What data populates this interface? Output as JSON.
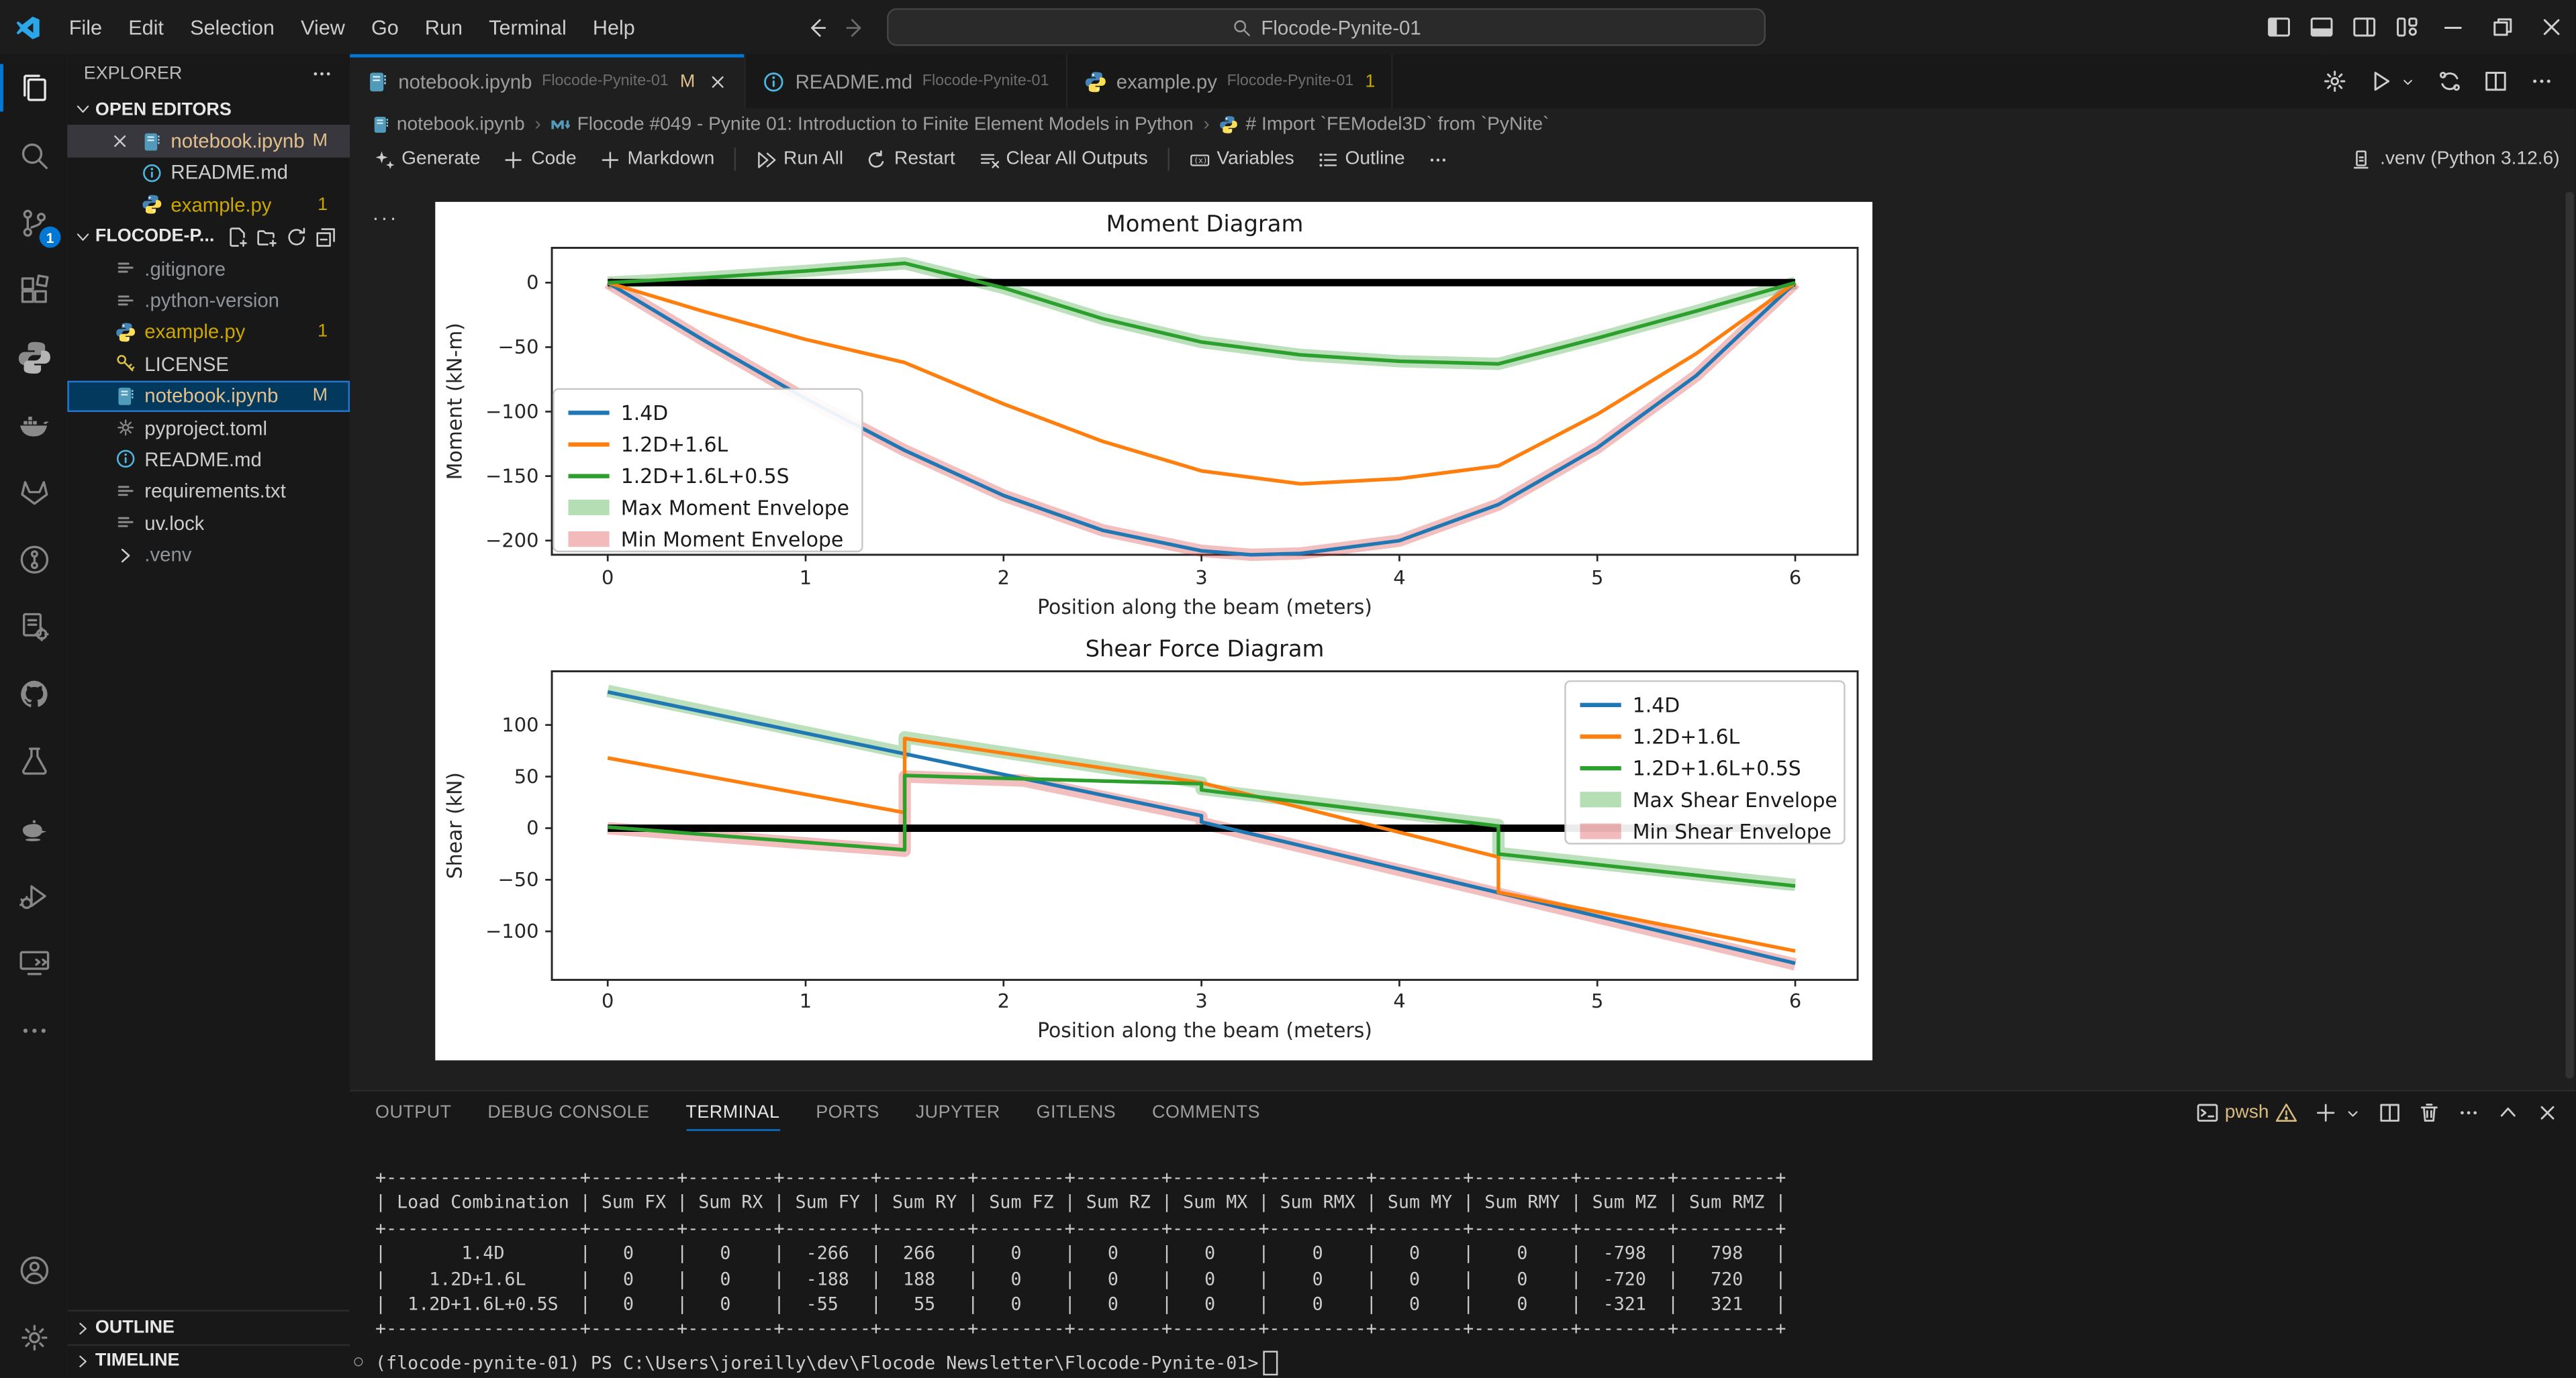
{
  "window": {
    "menu": [
      "File",
      "Edit",
      "Selection",
      "View",
      "Go",
      "Run",
      "Terminal",
      "Help"
    ],
    "search_value": "Flocode-Pynite-01",
    "layout_icons": [
      "toggle-sidebar",
      "toggle-panel",
      "toggle-secondary-sidebar",
      "customize-layout"
    ],
    "controls": [
      "minimize",
      "restore",
      "close"
    ]
  },
  "activity_bar": {
    "top": [
      {
        "name": "explorer",
        "active": true
      },
      {
        "name": "search"
      },
      {
        "name": "source-control",
        "badge": "1"
      },
      {
        "name": "extensions"
      },
      {
        "name": "python"
      },
      {
        "name": "docker"
      },
      {
        "name": "gitlab"
      },
      {
        "name": "gitlens"
      },
      {
        "name": "notebook-kernels"
      },
      {
        "name": "github"
      },
      {
        "name": "testing"
      },
      {
        "name": "genie-lamp"
      },
      {
        "name": "run-and-debug"
      },
      {
        "name": "remote-explorer"
      },
      {
        "name": "more-views"
      }
    ],
    "bottom": [
      {
        "name": "accounts"
      },
      {
        "name": "manage-settings"
      }
    ]
  },
  "sidebar": {
    "title": "EXPLORER",
    "open_editors": {
      "label": "OPEN EDITORS",
      "items": [
        {
          "icon": "notebook",
          "label": "notebook.ipynb",
          "badge": "M",
          "badge_style": "mod",
          "label_style": "mod",
          "selected": true,
          "close": true
        },
        {
          "icon": "info",
          "label": "README.md"
        },
        {
          "icon": "python",
          "label": "example.py",
          "badge": "1",
          "badge_style": "warn",
          "label_style": "warn"
        }
      ]
    },
    "workspace": {
      "label": "FLOCODE-P...",
      "actions": [
        "new-file",
        "new-folder",
        "refresh",
        "collapse-all"
      ],
      "items": [
        {
          "icon": "file",
          "label": ".gitignore",
          "label_style": "dim"
        },
        {
          "icon": "file",
          "label": ".python-version",
          "label_style": "dim"
        },
        {
          "icon": "python",
          "label": "example.py",
          "badge": "1",
          "badge_style": "warn",
          "label_style": "warn"
        },
        {
          "icon": "key",
          "label": "LICENSE"
        },
        {
          "icon": "notebook",
          "label": "notebook.ipynb",
          "badge": "M",
          "badge_style": "mod",
          "label_style": "mod",
          "selected": true
        },
        {
          "icon": "gear-file",
          "label": "pyproject.toml"
        },
        {
          "icon": "info",
          "label": "README.md"
        },
        {
          "icon": "file",
          "label": "requirements.txt"
        },
        {
          "icon": "file",
          "label": "uv.lock"
        },
        {
          "icon": "chevron-right",
          "label": ".venv",
          "label_style": "dim"
        }
      ]
    },
    "bottom_sections": [
      "OUTLINE",
      "TIMELINE"
    ]
  },
  "editor": {
    "tabs": [
      {
        "icon": "notebook",
        "label": "notebook.ipynb",
        "description": "Flocode-Pynite-01",
        "badge": "M",
        "badge_style": "mod",
        "label_style": "mod",
        "active": true,
        "close": true
      },
      {
        "icon": "info",
        "label": "README.md",
        "description": "Flocode-Pynite-01"
      },
      {
        "icon": "python",
        "label": "example.py",
        "description": "Flocode-Pynite-01",
        "badge": "1",
        "badge_style": "warn",
        "label_style": "warn"
      }
    ],
    "actions": [
      "gear",
      "play",
      "caret-down-sm",
      "sync",
      "split",
      "more-h"
    ],
    "breadcrumb": [
      {
        "icon": "notebook",
        "label": "notebook.ipynb"
      },
      {
        "icon": "markdown",
        "label": "Flocode #049 - Pynite 01: Introduction to Finite Element Models in Python"
      },
      {
        "icon": "python",
        "label": "# Import `FEModel3D` from `PyNite`"
      }
    ],
    "toolbar": [
      {
        "icon": "sparkle",
        "label": "Generate"
      },
      {
        "icon": "plus",
        "label": "Code"
      },
      {
        "icon": "plus",
        "label": "Markdown"
      },
      {
        "divider": true
      },
      {
        "icon": "run-all",
        "label": "Run All"
      },
      {
        "icon": "restart",
        "label": "Restart"
      },
      {
        "icon": "clear",
        "label": "Clear All Outputs"
      },
      {
        "divider": true
      },
      {
        "icon": "variables",
        "label": "Variables"
      },
      {
        "icon": "outline",
        "label": "Outline"
      },
      {
        "icon": "more-h",
        "label": ""
      }
    ],
    "kernel": ".venv (Python 3.12.6)",
    "cell_more": "···"
  },
  "panel": {
    "tabs": [
      "OUTPUT",
      "DEBUG CONSOLE",
      "TERMINAL",
      "PORTS",
      "JUPYTER",
      "GITLENS",
      "COMMENTS"
    ],
    "active_tab": "TERMINAL",
    "shell_label": "pwsh",
    "actions": [
      "plus",
      "caret-down-sm",
      "split-panel",
      "trash",
      "more-h",
      "chevron-up",
      "close-x"
    ],
    "terminal_table": [
      "+------------------+--------+--------+--------+--------+--------+--------+--------+---------+--------+---------+--------+---------+",
      "| Load Combination | Sum FX | Sum RX | Sum FY | Sum RY | Sum FZ | Sum RZ | Sum MX | Sum RMX | Sum MY | Sum RMY | Sum MZ | Sum RMZ |",
      "+------------------+--------+--------+--------+--------+--------+--------+--------+---------+--------+---------+--------+---------+",
      "|       1.4D       |   0    |   0    |  -266  |  266   |   0    |   0    |   0    |    0    |   0    |    0    |  -798  |   798   |",
      "|    1.2D+1.6L     |   0    |   0    |  -188  |  188   |   0    |   0    |   0    |    0    |   0    |    0    |  -720  |   720   |",
      "|  1.2D+1.6L+0.5S  |   0    |   0    |  -55   |   55   |   0    |   0    |   0    |    0    |   0    |    0    |  -321  |   321   |",
      "+------------------+--------+--------+--------+--------+--------+--------+--------+---------+--------+---------+--------+---------+"
    ],
    "prompt": "(flocode-pynite-01) PS C:\\Users\\joreilly\\dev\\Flocode Newsletter\\Flocode-Pynite-01>"
  },
  "chart_data": [
    {
      "type": "line",
      "title": "Moment Diagram",
      "xlabel": "Position along the beam (meters)",
      "ylabel": "Moment (kN-m)",
      "xlim": [
        0,
        6
      ],
      "ylim": [
        -211,
        27
      ],
      "xticks": [
        0,
        1,
        2,
        3,
        4,
        5,
        6
      ],
      "yticks": [
        0,
        -50,
        -100,
        -150,
        -200
      ],
      "grid": false,
      "legend_position": "lower-left",
      "legend": [
        {
          "label": "1.4D",
          "color": "#1f77b4",
          "type": "line"
        },
        {
          "label": "1.2D+1.6L",
          "color": "#ff7f0e",
          "type": "line"
        },
        {
          "label": "1.2D+1.6L+0.5S",
          "color": "#2ca02c",
          "type": "line"
        },
        {
          "label": "Max Moment Envelope",
          "color": "#2ca02c",
          "type": "band",
          "opacity": 0.35
        },
        {
          "label": "Min Moment Envelope",
          "color": "#d62728",
          "type": "band",
          "opacity": 0.32
        }
      ],
      "series": [
        {
          "name": "Max Moment Envelope",
          "kind": "band",
          "color": "#2ca02c",
          "width": 7.5,
          "opacity": 0.32,
          "points": [
            [
              0,
              0
            ],
            [
              0.5,
              4
            ],
            [
              1,
              9
            ],
            [
              1.5,
              15
            ],
            [
              2,
              -4
            ],
            [
              2.5,
              -28
            ],
            [
              3,
              -46
            ],
            [
              3.5,
              -56
            ],
            [
              4,
              -61
            ],
            [
              4.5,
              -63
            ],
            [
              5,
              -43
            ],
            [
              5.5,
              -22
            ],
            [
              6,
              0
            ]
          ]
        },
        {
          "name": "Min Moment Envelope",
          "kind": "band",
          "color": "#d62728",
          "width": 7.5,
          "opacity": 0.3,
          "points": [
            [
              0,
              0
            ],
            [
              0.5,
              -46
            ],
            [
              1,
              -90
            ],
            [
              1.5,
              -130
            ],
            [
              2,
              -165
            ],
            [
              2.5,
              -192
            ],
            [
              3,
              -208
            ],
            [
              3.25,
              -211
            ],
            [
              3.5,
              -210
            ],
            [
              4,
              -200
            ],
            [
              4.5,
              -172
            ],
            [
              5,
              -128
            ],
            [
              5.5,
              -72
            ],
            [
              6,
              0
            ]
          ]
        },
        {
          "name": "Beam",
          "kind": "line",
          "color": "#000000",
          "width": 4.5,
          "points": [
            [
              0,
              0
            ],
            [
              6,
              0
            ]
          ]
        },
        {
          "name": "1.4D",
          "kind": "line",
          "color": "#1f77b4",
          "width": 2.2,
          "points": [
            [
              0,
              0
            ],
            [
              0.5,
              -46
            ],
            [
              1,
              -90
            ],
            [
              1.5,
              -130
            ],
            [
              2,
              -165
            ],
            [
              2.5,
              -192
            ],
            [
              3,
              -208
            ],
            [
              3.25,
              -211
            ],
            [
              3.5,
              -210
            ],
            [
              4,
              -200
            ],
            [
              4.5,
              -172
            ],
            [
              5,
              -128
            ],
            [
              5.5,
              -72
            ],
            [
              6,
              0
            ]
          ]
        },
        {
          "name": "1.2D+1.6L",
          "kind": "line",
          "color": "#ff7f0e",
          "width": 2.2,
          "points": [
            [
              0,
              0
            ],
            [
              0.5,
              -23
            ],
            [
              1,
              -44
            ],
            [
              1.5,
              -62
            ],
            [
              2,
              -94
            ],
            [
              2.5,
              -123
            ],
            [
              3,
              -146
            ],
            [
              3.5,
              -156
            ],
            [
              4,
              -152
            ],
            [
              4.5,
              -142
            ],
            [
              5,
              -102
            ],
            [
              5.5,
              -55
            ],
            [
              6,
              0
            ]
          ]
        },
        {
          "name": "1.2D+1.6L+0.5S",
          "kind": "line",
          "color": "#2ca02c",
          "width": 2.2,
          "points": [
            [
              0,
              0
            ],
            [
              0.5,
              4
            ],
            [
              1,
              9
            ],
            [
              1.5,
              15
            ],
            [
              2,
              -4
            ],
            [
              2.5,
              -28
            ],
            [
              3,
              -46
            ],
            [
              3.5,
              -56
            ],
            [
              4,
              -61
            ],
            [
              4.5,
              -63
            ],
            [
              5,
              -43
            ],
            [
              5.5,
              -22
            ],
            [
              6,
              0
            ]
          ]
        }
      ]
    },
    {
      "type": "line",
      "title": "Shear Force Diagram",
      "xlabel": "Position along the beam (meters)",
      "ylabel": "Shear (kN)",
      "xlim": [
        0,
        6
      ],
      "ylim": [
        -147,
        152
      ],
      "xticks": [
        0,
        1,
        2,
        3,
        4,
        5,
        6
      ],
      "yticks": [
        100,
        50,
        0,
        -50,
        -100
      ],
      "grid": false,
      "legend_position": "upper-right",
      "legend": [
        {
          "label": "1.4D",
          "color": "#1f77b4",
          "type": "line"
        },
        {
          "label": "1.2D+1.6L",
          "color": "#ff7f0e",
          "type": "line"
        },
        {
          "label": "1.2D+1.6L+0.5S",
          "color": "#2ca02c",
          "type": "line"
        },
        {
          "label": "Max Shear Envelope",
          "color": "#2ca02c",
          "type": "band",
          "opacity": 0.35
        },
        {
          "label": "Min Shear Envelope",
          "color": "#d62728",
          "type": "band",
          "opacity": 0.32
        }
      ],
      "series": [
        {
          "name": "Max Shear Envelope",
          "kind": "band",
          "color": "#2ca02c",
          "width": 7.5,
          "opacity": 0.32,
          "points": [
            [
              0,
              133
            ],
            [
              1.5,
              73
            ],
            [
              1.5,
              88
            ],
            [
              3,
              44
            ],
            [
              3,
              38
            ],
            [
              4.5,
              3
            ],
            [
              4.5,
              -24
            ],
            [
              6,
              -55
            ]
          ]
        },
        {
          "name": "Min Shear Envelope",
          "kind": "band",
          "color": "#d62728",
          "width": 7.5,
          "opacity": 0.3,
          "points": [
            [
              0,
              0
            ],
            [
              1.5,
              -22
            ],
            [
              1.5,
              50
            ],
            [
              2.1,
              46
            ],
            [
              3,
              11
            ],
            [
              3,
              5
            ],
            [
              6,
              -132
            ]
          ]
        },
        {
          "name": "Beam",
          "kind": "line",
          "color": "#000000",
          "width": 4.5,
          "points": [
            [
              0,
              0
            ],
            [
              6,
              0
            ]
          ]
        },
        {
          "name": "1.4D",
          "kind": "line",
          "color": "#1f77b4",
          "width": 2.2,
          "points": [
            [
              0,
              132
            ],
            [
              1.5,
              72
            ],
            [
              3,
              12
            ],
            [
              3,
              6
            ],
            [
              6,
              -131
            ]
          ]
        },
        {
          "name": "1.2D+1.6L",
          "kind": "line",
          "color": "#ff7f0e",
          "width": 2.2,
          "points": [
            [
              0,
              68
            ],
            [
              1.5,
              15
            ],
            [
              1.5,
              87
            ],
            [
              3,
              44
            ],
            [
              4.5,
              -28
            ],
            [
              4.5,
              -62
            ],
            [
              6,
              -119
            ]
          ]
        },
        {
          "name": "1.2D+1.6L+0.5S",
          "kind": "line",
          "color": "#2ca02c",
          "width": 2.2,
          "points": [
            [
              0,
              1
            ],
            [
              1.5,
              -21
            ],
            [
              1.5,
              51
            ],
            [
              3,
              43
            ],
            [
              3,
              37
            ],
            [
              4.5,
              2
            ],
            [
              4.5,
              -25
            ],
            [
              6,
              -56
            ]
          ]
        }
      ]
    }
  ],
  "colors": {
    "accent": "#0078d4",
    "modified": "#e2c08d",
    "warning": "#cca700",
    "badge": "#0078d4"
  }
}
